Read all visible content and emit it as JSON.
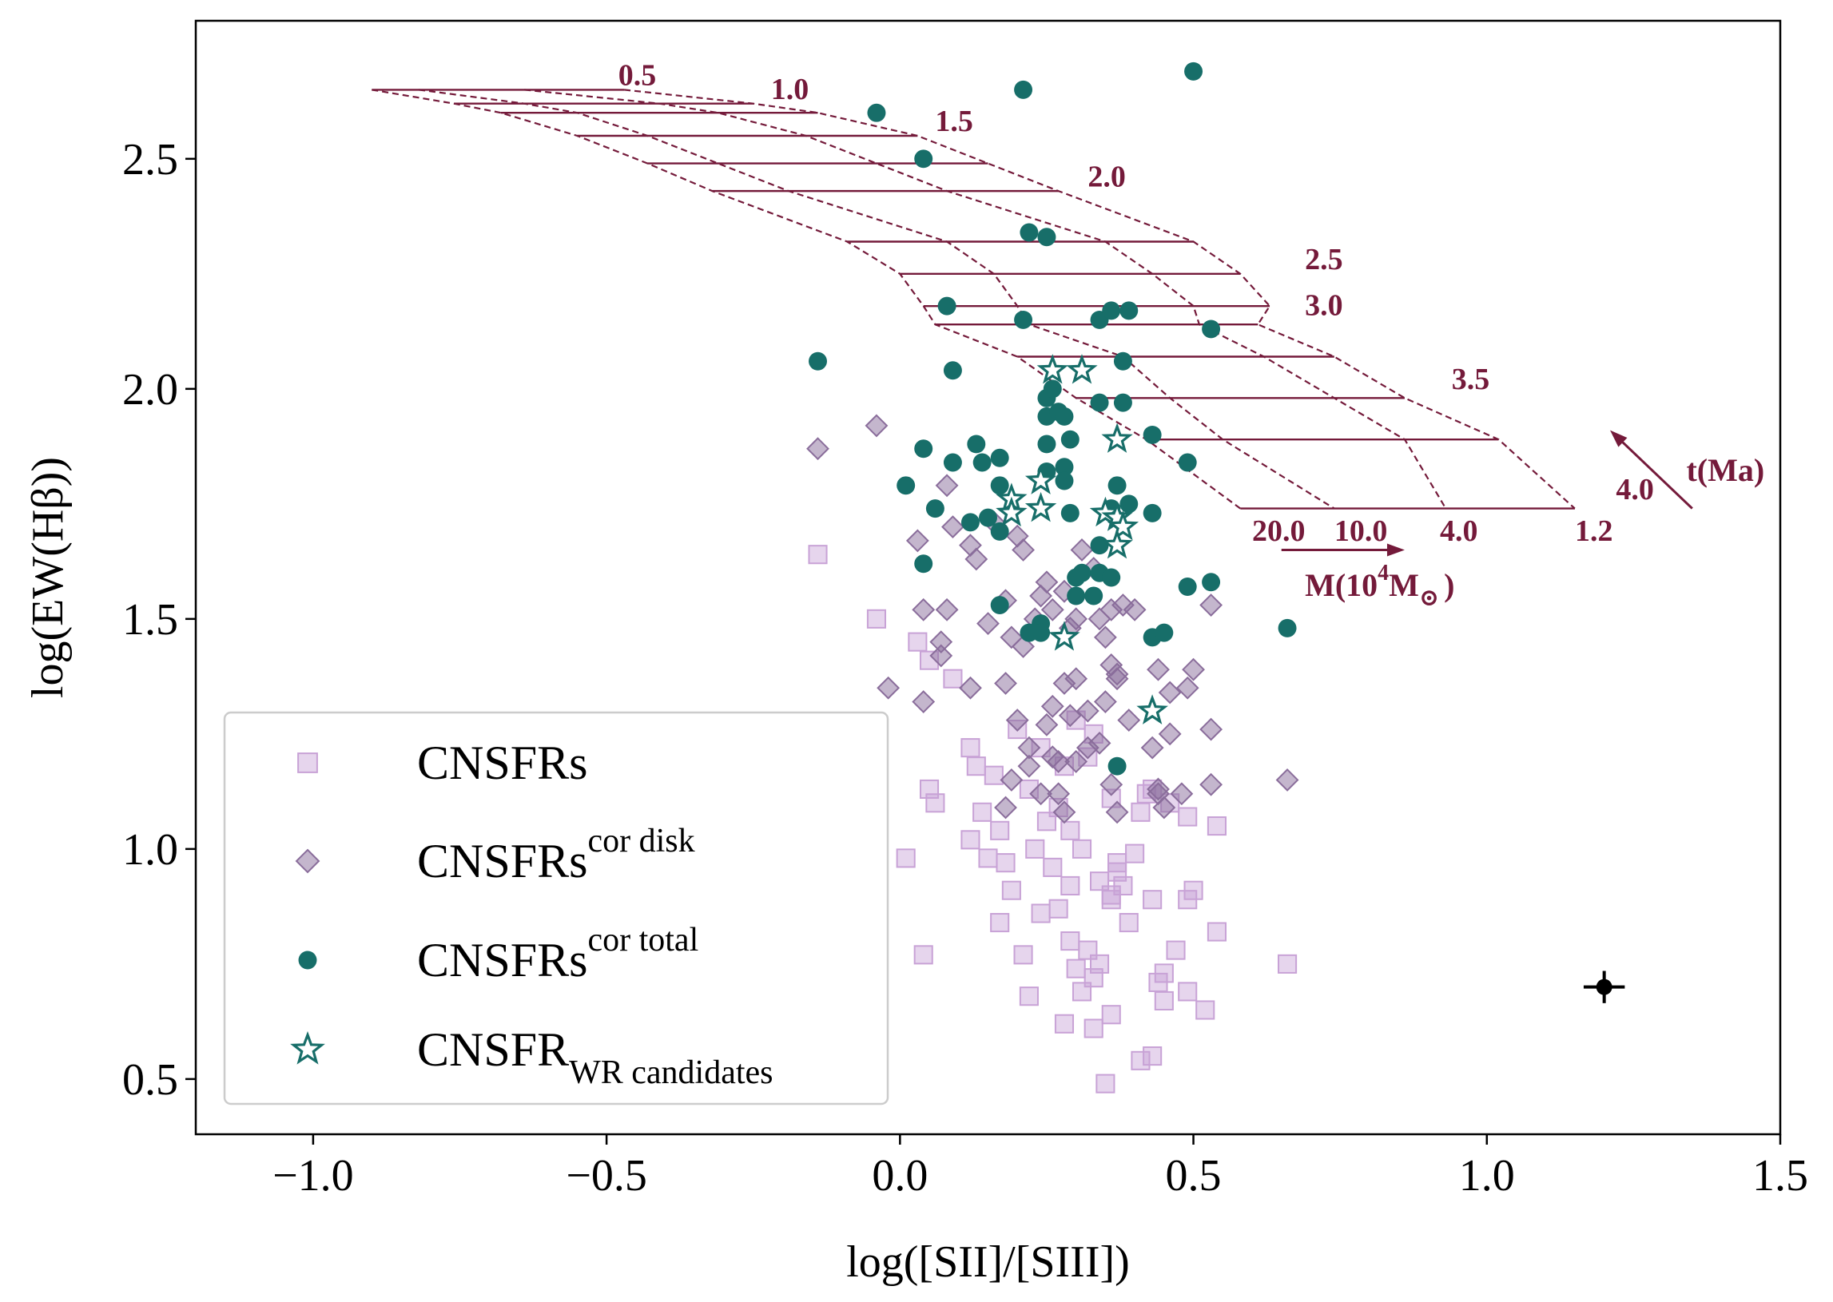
{
  "chart_data": {
    "type": "scatter",
    "xlabel": "log([SII]/[SIII])",
    "ylabel": "log(EW(Hβ))",
    "xlim": [
      -1.2,
      1.5
    ],
    "ylim": [
      0.38,
      2.8
    ],
    "xticks": [
      -1.0,
      -0.5,
      0.0,
      0.5,
      1.0,
      1.5
    ],
    "xtick_labels": [
      "−1.0",
      "−0.5",
      "0.0",
      "0.5",
      "1.0",
      "1.5"
    ],
    "yticks": [
      0.5,
      1.0,
      1.5,
      2.0,
      2.5
    ],
    "ytick_labels": [
      "0.5",
      "1.0",
      "1.5",
      "2.0",
      "2.5"
    ],
    "colors": {
      "cnsfrs": "#c8a2d6",
      "cor_disk": "#8a6d9b",
      "cor_total": "#176e69",
      "model": "#741a3a",
      "error": "#000000"
    },
    "legend": {
      "location": "lower-left",
      "entries": [
        {
          "key": "cnsfrs",
          "marker": "square",
          "label": "CNSFRs",
          "sup": "",
          "sub": ""
        },
        {
          "key": "cor_disk",
          "marker": "diamond",
          "label": "CNSFRs",
          "sup": "cor disk",
          "sub": ""
        },
        {
          "key": "cor_total",
          "marker": "circle",
          "label": "CNSFRs",
          "sup": "cor total",
          "sub": ""
        },
        {
          "key": "wr",
          "marker": "star",
          "label": "CNSFR",
          "sup": "",
          "sub": "WR candidates"
        }
      ]
    },
    "series": [
      {
        "name": "CNSFRs",
        "marker": "square",
        "points": [
          [
            -0.14,
            1.64
          ],
          [
            -0.04,
            1.5
          ],
          [
            0.03,
            1.45
          ],
          [
            0.05,
            1.41
          ],
          [
            0.09,
            1.37
          ],
          [
            0.12,
            1.22
          ],
          [
            0.16,
            1.16
          ],
          [
            0.2,
            1.26
          ],
          [
            0.24,
            1.22
          ],
          [
            0.3,
            1.28
          ],
          [
            0.05,
            1.13
          ],
          [
            0.06,
            1.1
          ],
          [
            0.13,
            1.18
          ],
          [
            0.14,
            1.08
          ],
          [
            0.17,
            1.04
          ],
          [
            0.22,
            1.13
          ],
          [
            0.25,
            1.06
          ],
          [
            0.27,
            1.09
          ],
          [
            0.29,
            1.04
          ],
          [
            0.31,
            1.0
          ],
          [
            0.32,
            1.2
          ],
          [
            0.36,
            1.11
          ],
          [
            0.42,
            1.12
          ],
          [
            0.46,
            1.1
          ],
          [
            0.49,
            1.07
          ],
          [
            0.54,
            1.05
          ],
          [
            0.01,
            0.98
          ],
          [
            0.12,
            1.02
          ],
          [
            0.15,
            0.98
          ],
          [
            0.18,
            0.97
          ],
          [
            0.23,
            1.0
          ],
          [
            0.26,
            0.96
          ],
          [
            0.29,
            0.92
          ],
          [
            0.34,
            0.93
          ],
          [
            0.36,
            0.9
          ],
          [
            0.37,
            0.95
          ],
          [
            0.38,
            0.92
          ],
          [
            0.39,
            0.84
          ],
          [
            0.43,
            0.89
          ],
          [
            0.49,
            0.89
          ],
          [
            0.5,
            0.91
          ],
          [
            0.54,
            0.82
          ],
          [
            0.04,
            0.77
          ],
          [
            0.17,
            0.84
          ],
          [
            0.24,
            0.86
          ],
          [
            0.27,
            0.87
          ],
          [
            0.29,
            0.8
          ],
          [
            0.3,
            0.74
          ],
          [
            0.32,
            0.78
          ],
          [
            0.33,
            0.72
          ],
          [
            0.34,
            0.75
          ],
          [
            0.21,
            0.77
          ],
          [
            0.22,
            0.68
          ],
          [
            0.28,
            0.62
          ],
          [
            0.33,
            0.61
          ],
          [
            0.36,
            0.64
          ],
          [
            0.41,
            0.54
          ],
          [
            0.43,
            0.55
          ],
          [
            0.45,
            0.67
          ],
          [
            0.45,
            0.73
          ],
          [
            0.47,
            0.78
          ],
          [
            0.49,
            0.69
          ],
          [
            0.52,
            0.65
          ],
          [
            0.35,
            0.49
          ],
          [
            0.44,
            0.71
          ],
          [
            0.66,
            0.75
          ],
          [
            0.36,
            0.89
          ],
          [
            0.37,
            0.97
          ],
          [
            0.19,
            0.91
          ],
          [
            0.31,
            0.69
          ],
          [
            0.4,
            0.99
          ],
          [
            0.41,
            1.08
          ],
          [
            0.43,
            1.13
          ],
          [
            0.28,
            1.18
          ],
          [
            0.33,
            1.25
          ]
        ]
      },
      {
        "name": "CNSFRs cor disk",
        "marker": "diamond",
        "points": [
          [
            -0.14,
            1.87
          ],
          [
            -0.04,
            1.92
          ],
          [
            0.08,
            1.79
          ],
          [
            0.09,
            1.7
          ],
          [
            0.12,
            1.66
          ],
          [
            0.13,
            1.63
          ],
          [
            0.16,
            1.71
          ],
          [
            0.2,
            1.68
          ],
          [
            0.21,
            1.65
          ],
          [
            0.03,
            1.67
          ],
          [
            0.04,
            1.52
          ],
          [
            0.08,
            1.52
          ],
          [
            0.15,
            1.49
          ],
          [
            0.18,
            1.54
          ],
          [
            0.19,
            1.46
          ],
          [
            0.21,
            1.44
          ],
          [
            0.23,
            1.5
          ],
          [
            0.24,
            1.55
          ],
          [
            0.25,
            1.58
          ],
          [
            0.26,
            1.52
          ],
          [
            0.28,
            1.56
          ],
          [
            0.29,
            1.48
          ],
          [
            0.3,
            1.5
          ],
          [
            0.31,
            1.65
          ],
          [
            0.33,
            1.61
          ],
          [
            0.34,
            1.5
          ],
          [
            0.35,
            1.46
          ],
          [
            0.36,
            1.52
          ],
          [
            0.38,
            1.53
          ],
          [
            0.4,
            1.52
          ],
          [
            -0.02,
            1.35
          ],
          [
            0.04,
            1.32
          ],
          [
            0.07,
            1.42
          ],
          [
            0.07,
            1.45
          ],
          [
            0.12,
            1.35
          ],
          [
            0.18,
            1.36
          ],
          [
            0.2,
            1.28
          ],
          [
            0.22,
            1.22
          ],
          [
            0.25,
            1.27
          ],
          [
            0.26,
            1.31
          ],
          [
            0.28,
            1.36
          ],
          [
            0.29,
            1.29
          ],
          [
            0.3,
            1.37
          ],
          [
            0.32,
            1.3
          ],
          [
            0.35,
            1.32
          ],
          [
            0.36,
            1.4
          ],
          [
            0.37,
            1.38
          ],
          [
            0.37,
            1.37
          ],
          [
            0.39,
            1.28
          ],
          [
            0.44,
            1.39
          ],
          [
            0.46,
            1.34
          ],
          [
            0.49,
            1.35
          ],
          [
            0.5,
            1.39
          ],
          [
            0.53,
            1.26
          ],
          [
            0.19,
            1.15
          ],
          [
            0.22,
            1.18
          ],
          [
            0.24,
            1.12
          ],
          [
            0.27,
            1.19
          ],
          [
            0.27,
            1.12
          ],
          [
            0.28,
            1.08
          ],
          [
            0.3,
            1.19
          ],
          [
            0.32,
            1.22
          ],
          [
            0.36,
            1.14
          ],
          [
            0.37,
            1.08
          ],
          [
            0.43,
            1.22
          ],
          [
            0.44,
            1.13
          ],
          [
            0.44,
            1.12
          ],
          [
            0.45,
            1.09
          ],
          [
            0.48,
            1.12
          ],
          [
            0.53,
            1.14
          ],
          [
            0.66,
            1.15
          ],
          [
            0.53,
            1.53
          ],
          [
            0.36,
            1.73
          ],
          [
            0.46,
            1.25
          ],
          [
            0.18,
            1.09
          ],
          [
            0.26,
            1.2
          ],
          [
            0.34,
            1.23
          ]
        ]
      },
      {
        "name": "CNSFRs cor total",
        "marker": "circle",
        "points": [
          [
            -0.04,
            2.6
          ],
          [
            0.21,
            2.65
          ],
          [
            0.5,
            2.69
          ],
          [
            0.04,
            2.5
          ],
          [
            0.22,
            2.34
          ],
          [
            0.25,
            2.33
          ],
          [
            0.08,
            2.18
          ],
          [
            0.21,
            2.15
          ],
          [
            0.34,
            2.15
          ],
          [
            0.36,
            2.17
          ],
          [
            0.39,
            2.17
          ],
          [
            0.53,
            2.13
          ],
          [
            -0.14,
            2.06
          ],
          [
            0.09,
            2.04
          ],
          [
            0.38,
            2.06
          ],
          [
            0.25,
            1.98
          ],
          [
            0.26,
            2.0
          ],
          [
            0.34,
            1.97
          ],
          [
            0.38,
            1.97
          ],
          [
            0.25,
            1.94
          ],
          [
            0.27,
            1.95
          ],
          [
            0.28,
            1.94
          ],
          [
            0.29,
            1.89
          ],
          [
            0.43,
            1.9
          ],
          [
            0.04,
            1.87
          ],
          [
            0.13,
            1.88
          ],
          [
            0.17,
            1.85
          ],
          [
            0.25,
            1.88
          ],
          [
            0.09,
            1.84
          ],
          [
            0.14,
            1.84
          ],
          [
            0.25,
            1.82
          ],
          [
            0.28,
            1.83
          ],
          [
            0.49,
            1.84
          ],
          [
            0.01,
            1.79
          ],
          [
            0.17,
            1.79
          ],
          [
            0.28,
            1.8
          ],
          [
            0.37,
            1.79
          ],
          [
            0.06,
            1.74
          ],
          [
            0.12,
            1.71
          ],
          [
            0.15,
            1.72
          ],
          [
            0.17,
            1.69
          ],
          [
            0.29,
            1.73
          ],
          [
            0.36,
            1.74
          ],
          [
            0.39,
            1.75
          ],
          [
            0.43,
            1.73
          ],
          [
            0.34,
            1.66
          ],
          [
            0.04,
            1.62
          ],
          [
            0.3,
            1.59
          ],
          [
            0.31,
            1.6
          ],
          [
            0.34,
            1.6
          ],
          [
            0.36,
            1.59
          ],
          [
            0.3,
            1.55
          ],
          [
            0.33,
            1.55
          ],
          [
            0.49,
            1.57
          ],
          [
            0.53,
            1.58
          ],
          [
            0.17,
            1.53
          ],
          [
            0.22,
            1.47
          ],
          [
            0.24,
            1.49
          ],
          [
            0.24,
            1.47
          ],
          [
            0.43,
            1.46
          ],
          [
            0.45,
            1.47
          ],
          [
            0.66,
            1.48
          ],
          [
            0.37,
            1.18
          ]
        ]
      },
      {
        "name": "CNSFR WR candidates",
        "marker": "star",
        "points": [
          [
            0.26,
            2.04
          ],
          [
            0.31,
            2.04
          ],
          [
            0.37,
            1.89
          ],
          [
            0.24,
            1.8
          ],
          [
            0.19,
            1.76
          ],
          [
            0.19,
            1.73
          ],
          [
            0.24,
            1.74
          ],
          [
            0.35,
            1.73
          ],
          [
            0.37,
            1.72
          ],
          [
            0.38,
            1.7
          ],
          [
            0.37,
            1.66
          ],
          [
            0.28,
            1.46
          ],
          [
            0.43,
            1.3
          ]
        ]
      }
    ],
    "error_bar": {
      "x": 1.2,
      "y": 0.7,
      "xerr": 0.035,
      "yerr": 0.035
    },
    "model_grid": {
      "age_labels": [
        "0.5",
        "1.0",
        "1.5",
        "2.0",
        "2.5",
        "3.0",
        "3.5",
        "4.0"
      ],
      "mass_labels": [
        "20.0",
        "10.0",
        "4.0",
        "1.2"
      ],
      "age_lines": [
        {
          "y": 2.65,
          "x": [
            -0.9,
            -0.82,
            -0.64,
            -0.47
          ]
        },
        {
          "y": 2.62,
          "x": [
            -0.76,
            -0.64,
            -0.41,
            -0.25
          ]
        },
        {
          "y": 2.6,
          "x": [
            -0.68,
            -0.55,
            -0.31,
            -0.14
          ]
        },
        {
          "y": 2.55,
          "x": [
            -0.55,
            -0.43,
            -0.16,
            0.03
          ]
        },
        {
          "y": 2.49,
          "x": [
            -0.43,
            -0.31,
            -0.04,
            0.15
          ]
        },
        {
          "y": 2.43,
          "x": [
            -0.32,
            -0.19,
            0.08,
            0.27
          ]
        },
        {
          "y": 2.32,
          "x": [
            -0.09,
            0.08,
            0.35,
            0.5
          ]
        },
        {
          "y": 2.25,
          "x": [
            0.0,
            0.16,
            0.43,
            0.58
          ]
        },
        {
          "y": 2.18,
          "x": [
            0.04,
            0.2,
            0.5,
            0.63
          ]
        },
        {
          "y": 2.14,
          "x": [
            0.06,
            0.22,
            0.51,
            0.61
          ]
        },
        {
          "y": 2.07,
          "x": [
            0.2,
            0.38,
            0.62,
            0.74
          ]
        },
        {
          "y": 1.98,
          "x": [
            0.3,
            0.46,
            0.74,
            0.86
          ]
        },
        {
          "y": 1.89,
          "x": [
            0.42,
            0.55,
            0.86,
            1.02
          ]
        },
        {
          "y": 1.74,
          "x": [
            0.58,
            0.74,
            0.93,
            1.15
          ]
        }
      ],
      "age_label_positions": [
        [
          -0.48,
          2.66
        ],
        [
          -0.22,
          2.63
        ],
        [
          0.06,
          2.56
        ],
        [
          0.32,
          2.44
        ],
        [
          0.69,
          2.26
        ],
        [
          0.69,
          2.16
        ],
        [
          0.94,
          2.0
        ],
        [
          1.22,
          1.76
        ]
      ],
      "mass_label_positions": [
        [
          0.6,
          1.67
        ],
        [
          0.74,
          1.67
        ],
        [
          0.92,
          1.67
        ],
        [
          1.15,
          1.67
        ]
      ],
      "mass_arrow": {
        "x0": 0.65,
        "x1": 0.86,
        "y": 1.65,
        "label": "M(10",
        "label_sup": "4",
        "label_tail": "M",
        "label_sun": "⊙",
        "label_close": ")"
      },
      "age_arrow": {
        "x0": 1.35,
        "y0": 1.74,
        "x1": 1.21,
        "y1": 1.91,
        "label": "t(Ma)"
      }
    }
  }
}
